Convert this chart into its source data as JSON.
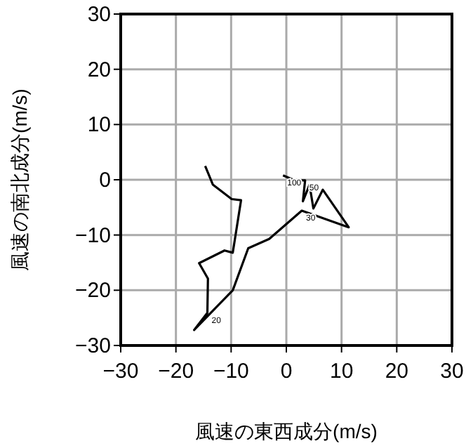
{
  "chart_data": {
    "type": "line",
    "xlabel": "風速の東西成分(m/s)",
    "ylabel": "風速の南北成分(m/s)",
    "xlim": [
      -30,
      30
    ],
    "ylim": [
      -30,
      30
    ],
    "xticks": [
      -30,
      -20,
      -10,
      0,
      10,
      20,
      30
    ],
    "yticks": [
      -30,
      -20,
      -10,
      0,
      10,
      20,
      30
    ],
    "grid": true,
    "marker": "none",
    "line_style": "solid",
    "series": [
      {
        "color": "#000000",
        "x": [
          -14.7,
          -13.3,
          -9.9,
          -8.2,
          -9.7,
          -11.2,
          -15.8,
          -14.2,
          -14.3,
          -16.7,
          -9.7,
          -6.9,
          -3.1,
          2.8,
          11.3,
          6.6,
          4.9,
          4.2,
          3.0,
          3.4,
          1.5,
          -0.6
        ],
        "values": [
          2.5,
          -0.9,
          -3.5,
          -3.7,
          -13.2,
          -12.8,
          -15.1,
          -17.9,
          -24.1,
          -27.2,
          -20.0,
          -12.4,
          -10.7,
          -5.6,
          -8.6,
          -1.8,
          -5.2,
          -0.9,
          -3.9,
          -0.1,
          -0.1,
          0.8
        ]
      }
    ],
    "annotations": [
      {
        "text": "100",
        "x": -0.6,
        "y": 0.8
      },
      {
        "text": "50",
        "x": 3.4,
        "y": -0.1
      },
      {
        "text": "30",
        "x": 2.8,
        "y": -5.6
      },
      {
        "text": "20",
        "x": -14.3,
        "y": -24.1
      }
    ]
  }
}
